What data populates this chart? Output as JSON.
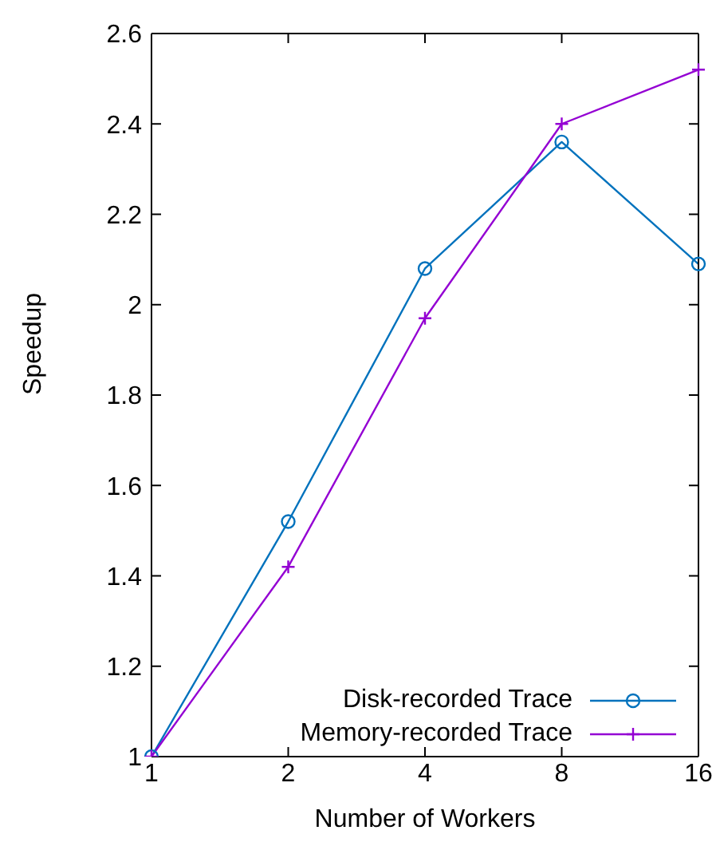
{
  "chart_data": {
    "type": "line",
    "xlabel": "Number of Workers",
    "ylabel": "Speedup",
    "categories": [
      "1",
      "2",
      "4",
      "8",
      "16"
    ],
    "series": [
      {
        "name": "Disk-recorded Trace",
        "color": "#0072bd",
        "marker": "circle",
        "values": [
          1,
          1.52,
          2.08,
          2.36,
          2.09
        ]
      },
      {
        "name": "Memory-recorded Trace",
        "color": "#9400d3",
        "marker": "cross",
        "values": [
          1,
          1.42,
          1.97,
          2.4,
          2.52
        ]
      }
    ],
    "ylim": [
      1,
      2.6
    ],
    "yticks": [
      1,
      {
        "value": 1.2,
        "label": "1.2"
      },
      {
        "value": 1.4,
        "label": "1.4"
      },
      {
        "value": 1.6,
        "label": "1.6"
      },
      {
        "value": 1.8,
        "label": "1.8"
      },
      2,
      {
        "value": 2.2,
        "label": "2.2"
      },
      {
        "value": 2.4,
        "label": "2.4"
      },
      {
        "value": 2.6,
        "label": "2.6"
      }
    ],
    "grid": false,
    "legend": "bottom right",
    "line_style": "solid"
  }
}
